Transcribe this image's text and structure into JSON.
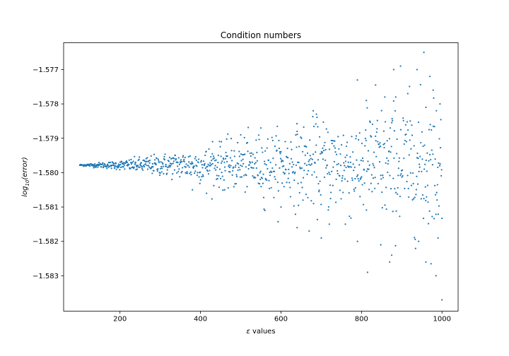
{
  "chart_data": {
    "type": "scatter",
    "title": "Condition numbers",
    "xlabel": "ε values",
    "ylabel": "log10(error)",
    "xlim": [
      60,
      1040
    ],
    "ylim": [
      -1.58403,
      -1.57622
    ],
    "grid": false,
    "legend": "none",
    "x_ticks": [
      200,
      400,
      600,
      800,
      1000
    ],
    "x_tick_labels": [
      "200",
      "400",
      "600",
      "800",
      "1000"
    ],
    "y_ticks": [
      -1.577,
      -1.578,
      -1.579,
      -1.58,
      -1.581,
      -1.582,
      -1.583
    ],
    "y_tick_labels": [
      "−1.577",
      "−1.578",
      "−1.579",
      "−1.580",
      "−1.581",
      "−1.582",
      "−1.583"
    ],
    "series": [
      {
        "color": "#1f77b4",
        "x_range": [
          100,
          1000
        ],
        "n_points": 1000,
        "center": -1.57978,
        "spread_at_x": [
          [
            100,
            2e-05
          ],
          [
            200,
            0.00012
          ],
          [
            400,
            0.00045
          ],
          [
            600,
            0.0009
          ],
          [
            800,
            0.0014
          ],
          [
            1000,
            0.0019
          ]
        ],
        "points": [
          [
            955,
            -1.5765
          ],
          [
            880,
            -1.577
          ],
          [
            897,
            -1.5769
          ],
          [
            938,
            -1.577
          ],
          [
            970,
            -1.5772
          ],
          [
            835,
            -1.57745
          ],
          [
            858,
            -1.5778
          ],
          [
            885,
            -1.5778
          ],
          [
            915,
            -1.5777
          ],
          [
            995,
            -1.578
          ],
          [
            812,
            -1.5779
          ],
          [
            680,
            -1.5782
          ],
          [
            688,
            -1.5783
          ],
          [
            550,
            -1.5787
          ],
          [
            500,
            -1.5789
          ],
          [
            960,
            -1.5781
          ],
          [
            978,
            -1.5776
          ],
          [
            640,
            -1.5788
          ],
          [
            452,
            -1.5791
          ],
          [
            430,
            -1.5791
          ],
          [
            1000,
            -1.5837
          ],
          [
            985,
            -1.583
          ],
          [
            815,
            -1.5829
          ],
          [
            870,
            -1.5826
          ],
          [
            960,
            -1.5826
          ],
          [
            875,
            -1.5824
          ],
          [
            848,
            -1.5821
          ],
          [
            942,
            -1.582
          ],
          [
            990,
            -1.5819
          ],
          [
            790,
            -1.582
          ],
          [
            700,
            -1.5819
          ],
          [
            670,
            -1.5817
          ],
          [
            720,
            -1.5815
          ],
          [
            760,
            -1.5815
          ],
          [
            640,
            -1.5816
          ],
          [
            415,
            -1.5806
          ],
          [
            460,
            -1.5805
          ],
          [
            560,
            -1.5811
          ],
          [
            600,
            -1.581
          ],
          [
            380,
            -1.5805
          ]
        ]
      }
    ]
  }
}
